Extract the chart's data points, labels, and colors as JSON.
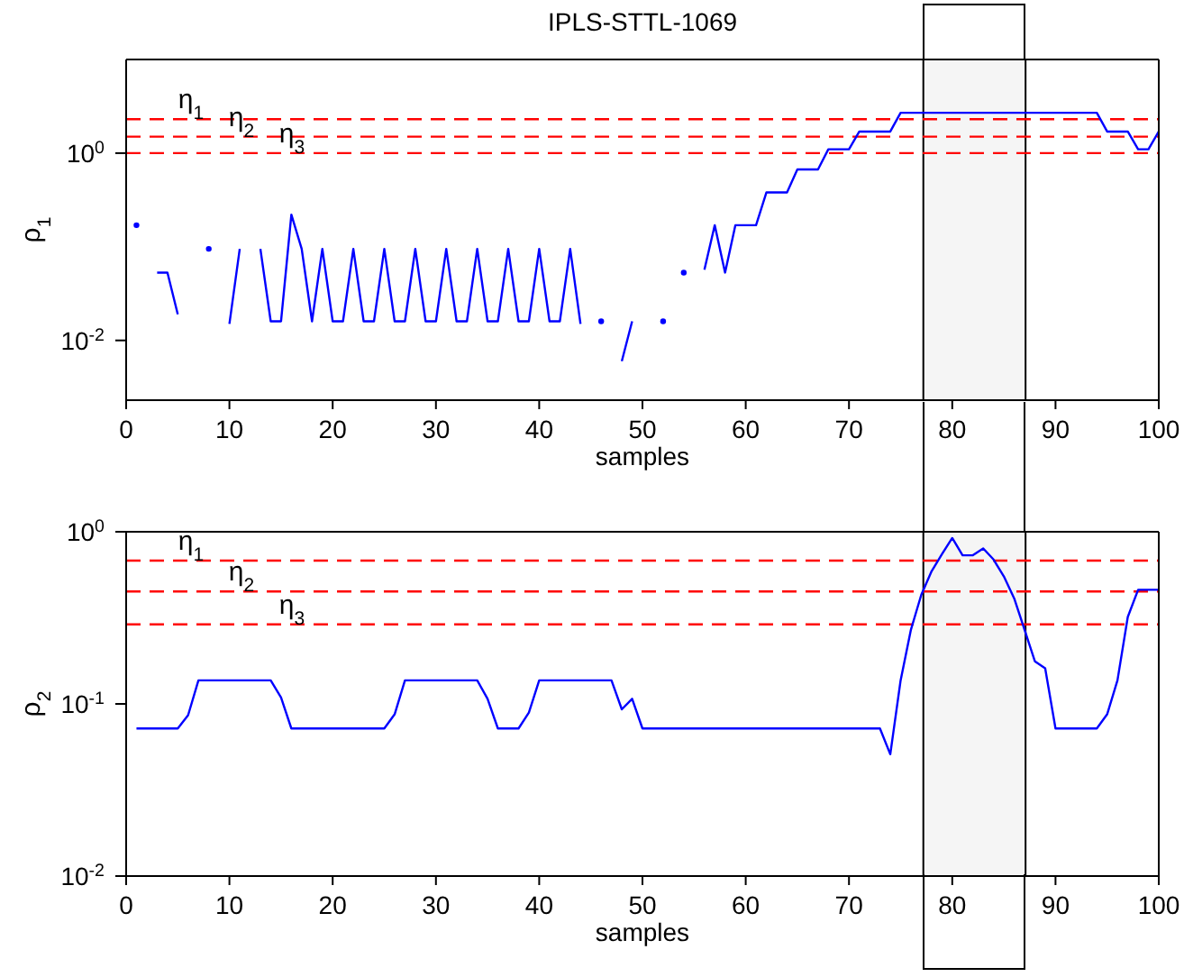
{
  "chart_data": [
    {
      "type": "line",
      "title": "IPLS-STTL-1069",
      "xlabel": "samples",
      "ylabel": "ρ$_{1}$",
      "log": "y",
      "grid": false,
      "legend": false,
      "marker": "none",
      "line_style": "solid",
      "xlim": [
        0,
        100
      ],
      "xticks": [
        0,
        10,
        20,
        30,
        40,
        50,
        60,
        70,
        80,
        90,
        100
      ],
      "ylim": [
        0.0023,
        10
      ],
      "yticks": [
        {
          "value": 0.01,
          "label": "10$^{-2}$"
        },
        {
          "value": 1,
          "label": "10$^{0}$"
        }
      ],
      "x": [
        1,
        2,
        3,
        4,
        5,
        6,
        7,
        8,
        9,
        10,
        11,
        12,
        13,
        14,
        15,
        16,
        17,
        18,
        19,
        20,
        21,
        22,
        23,
        24,
        25,
        26,
        27,
        28,
        29,
        30,
        31,
        32,
        33,
        34,
        35,
        36,
        37,
        38,
        39,
        40,
        41,
        42,
        43,
        44,
        45,
        46,
        47,
        48,
        49,
        50,
        51,
        52,
        53,
        54,
        55,
        56,
        57,
        58,
        59,
        60,
        61,
        62,
        63,
        64,
        65,
        66,
        67,
        68,
        69,
        70,
        71,
        72,
        73,
        74,
        75,
        76,
        77,
        78,
        79,
        80,
        81,
        82,
        83,
        84,
        85,
        86,
        87,
        88,
        89,
        90,
        91,
        92,
        93,
        94,
        95,
        96,
        97,
        98,
        99,
        100
      ],
      "series": [
        {
          "color": "#0000ff",
          "values": [
            0.17,
            null,
            0.053,
            0.053,
            0.019,
            null,
            null,
            0.095,
            null,
            0.015,
            0.095,
            null,
            0.095,
            0.016,
            0.016,
            0.22,
            0.095,
            0.016,
            0.095,
            0.016,
            0.016,
            0.095,
            0.016,
            0.016,
            0.095,
            0.016,
            0.016,
            0.095,
            0.016,
            0.016,
            0.095,
            0.016,
            0.016,
            0.095,
            0.016,
            0.016,
            0.095,
            0.016,
            0.016,
            0.095,
            0.016,
            0.016,
            0.095,
            0.015,
            null,
            0.016,
            null,
            0.006,
            0.016,
            null,
            null,
            0.016,
            null,
            0.053,
            null,
            0.057,
            0.17,
            0.053,
            0.17,
            0.17,
            0.17,
            0.38,
            0.38,
            0.38,
            0.67,
            0.67,
            0.67,
            1.1,
            1.1,
            1.1,
            1.7,
            1.7,
            1.7,
            1.7,
            2.7,
            2.7,
            2.7,
            2.7,
            2.7,
            2.7,
            2.7,
            2.7,
            2.7,
            2.7,
            2.7,
            2.7,
            2.7,
            2.7,
            2.7,
            2.7,
            2.7,
            2.7,
            2.7,
            2.7,
            1.7,
            1.7,
            1.7,
            1.1,
            1.1,
            1.7
          ]
        }
      ],
      "ref_lines": [
        {
          "axis": "y",
          "value": 2.3,
          "label": "η$_{1}$",
          "color": "#ff0000",
          "line_style": "dashed"
        },
        {
          "axis": "y",
          "value": 1.5,
          "label": "η$_{2}$",
          "color": "#ff0000",
          "line_style": "dashed"
        },
        {
          "axis": "y",
          "value": 1,
          "label": "η$_{3}$",
          "color": "#ff0000",
          "line_style": "dashed"
        }
      ],
      "bands": [
        {
          "axis": "x",
          "from": 77.2,
          "to": 87.1,
          "color": "#000000"
        }
      ]
    },
    {
      "type": "line",
      "xlabel": "samples",
      "ylabel": "ρ$_{2}$",
      "log": "y",
      "grid": false,
      "legend": false,
      "marker": "none",
      "line_style": "solid",
      "xlim": [
        0,
        100
      ],
      "xticks": [
        0,
        10,
        20,
        30,
        40,
        50,
        60,
        70,
        80,
        90,
        100
      ],
      "ylim": [
        0.01,
        1
      ],
      "yticks": [
        {
          "value": 0.01,
          "label": "10$^{-2}$"
        },
        {
          "value": 0.1,
          "label": "10$^{-1}$"
        },
        {
          "value": 1,
          "label": "10$^{0}$"
        }
      ],
      "x": [
        1,
        2,
        3,
        4,
        5,
        6,
        7,
        8,
        9,
        10,
        11,
        12,
        13,
        14,
        15,
        16,
        17,
        18,
        19,
        20,
        21,
        22,
        23,
        24,
        25,
        26,
        27,
        28,
        29,
        30,
        31,
        32,
        33,
        34,
        35,
        36,
        37,
        38,
        39,
        40,
        41,
        42,
        43,
        44,
        45,
        46,
        47,
        48,
        49,
        50,
        51,
        52,
        53,
        54,
        55,
        56,
        57,
        58,
        59,
        60,
        61,
        62,
        63,
        64,
        65,
        66,
        67,
        68,
        69,
        70,
        71,
        72,
        73,
        74,
        75,
        76,
        77,
        78,
        79,
        80,
        81,
        82,
        83,
        84,
        85,
        86,
        87,
        88,
        89,
        90,
        91,
        92,
        93,
        94,
        95,
        96,
        97,
        98,
        99,
        100
      ],
      "series": [
        {
          "color": "#0000ff",
          "values": [
            0.072,
            0.072,
            0.072,
            0.072,
            0.072,
            0.086,
            0.137,
            0.137,
            0.137,
            0.137,
            0.137,
            0.137,
            0.137,
            0.137,
            0.109,
            0.072,
            0.072,
            0.072,
            0.072,
            0.072,
            0.072,
            0.072,
            0.072,
            0.072,
            0.072,
            0.087,
            0.137,
            0.137,
            0.137,
            0.137,
            0.137,
            0.137,
            0.137,
            0.137,
            0.107,
            0.072,
            0.072,
            0.072,
            0.089,
            0.137,
            0.137,
            0.137,
            0.137,
            0.137,
            0.137,
            0.137,
            0.137,
            0.093,
            0.107,
            0.072,
            0.072,
            0.072,
            0.072,
            0.072,
            0.072,
            0.072,
            0.072,
            0.072,
            0.072,
            0.072,
            0.072,
            0.072,
            0.072,
            0.072,
            0.072,
            0.072,
            0.072,
            0.072,
            0.072,
            0.072,
            0.072,
            0.072,
            0.072,
            0.051,
            0.137,
            0.27,
            0.43,
            0.59,
            0.74,
            0.92,
            0.73,
            0.73,
            0.8,
            0.69,
            0.55,
            0.41,
            0.27,
            0.177,
            0.161,
            0.072,
            0.072,
            0.072,
            0.072,
            0.072,
            0.087,
            0.137,
            0.32,
            0.46,
            0.46,
            0.46
          ]
        }
      ],
      "ref_lines": [
        {
          "axis": "y",
          "value": 0.68,
          "label": "η$_{1}$",
          "color": "#ff0000",
          "line_style": "dashed"
        },
        {
          "axis": "y",
          "value": 0.45,
          "label": "η$_{2}$",
          "color": "#ff0000",
          "line_style": "dashed"
        },
        {
          "axis": "y",
          "value": 0.29,
          "label": "η$_{3}$",
          "color": "#ff0000",
          "line_style": "dashed"
        }
      ],
      "bands": [
        {
          "axis": "x",
          "from": 77.2,
          "to": 87.1,
          "color": "#000000"
        }
      ]
    }
  ]
}
